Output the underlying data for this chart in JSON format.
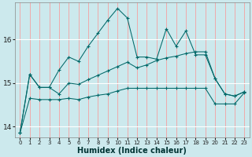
{
  "xlabel": "Humidex (Indice chaleur)",
  "background_color": "#cce9ed",
  "grid_color_v": "#f5a0a0",
  "grid_color_h": "#ffffff",
  "line_color": "#006868",
  "xlim": [
    -0.5,
    23.5
  ],
  "ylim": [
    13.75,
    16.85
  ],
  "yticks": [
    14,
    15,
    16
  ],
  "top_line": [
    13.85,
    15.2,
    14.9,
    14.9,
    15.3,
    15.6,
    15.5,
    15.85,
    16.15,
    16.45,
    16.72,
    16.5,
    15.6,
    15.6,
    15.55,
    16.25,
    15.85,
    16.2,
    15.65,
    15.65,
    15.1,
    14.75,
    14.7,
    14.8
  ],
  "mid_line": [
    13.85,
    15.2,
    14.9,
    14.9,
    14.75,
    15.0,
    14.97,
    15.08,
    15.18,
    15.28,
    15.38,
    15.48,
    15.35,
    15.42,
    15.52,
    15.58,
    15.62,
    15.68,
    15.72,
    15.72,
    15.1,
    14.75,
    14.7,
    14.8
  ],
  "bot_line": [
    13.85,
    14.65,
    14.62,
    14.62,
    14.62,
    14.65,
    14.62,
    14.68,
    14.72,
    14.75,
    14.82,
    14.88,
    14.88,
    14.88,
    14.88,
    14.88,
    14.88,
    14.88,
    14.88,
    14.88,
    14.52,
    14.52,
    14.52,
    14.78
  ],
  "xtick_labels": [
    "0",
    "1",
    "2",
    "3",
    "4",
    "5",
    "6",
    "7",
    "8",
    "9",
    "10",
    "11",
    "12",
    "13",
    "14",
    "15",
    "16",
    "17",
    "18",
    "19",
    "20",
    "21",
    "22",
    "23"
  ]
}
